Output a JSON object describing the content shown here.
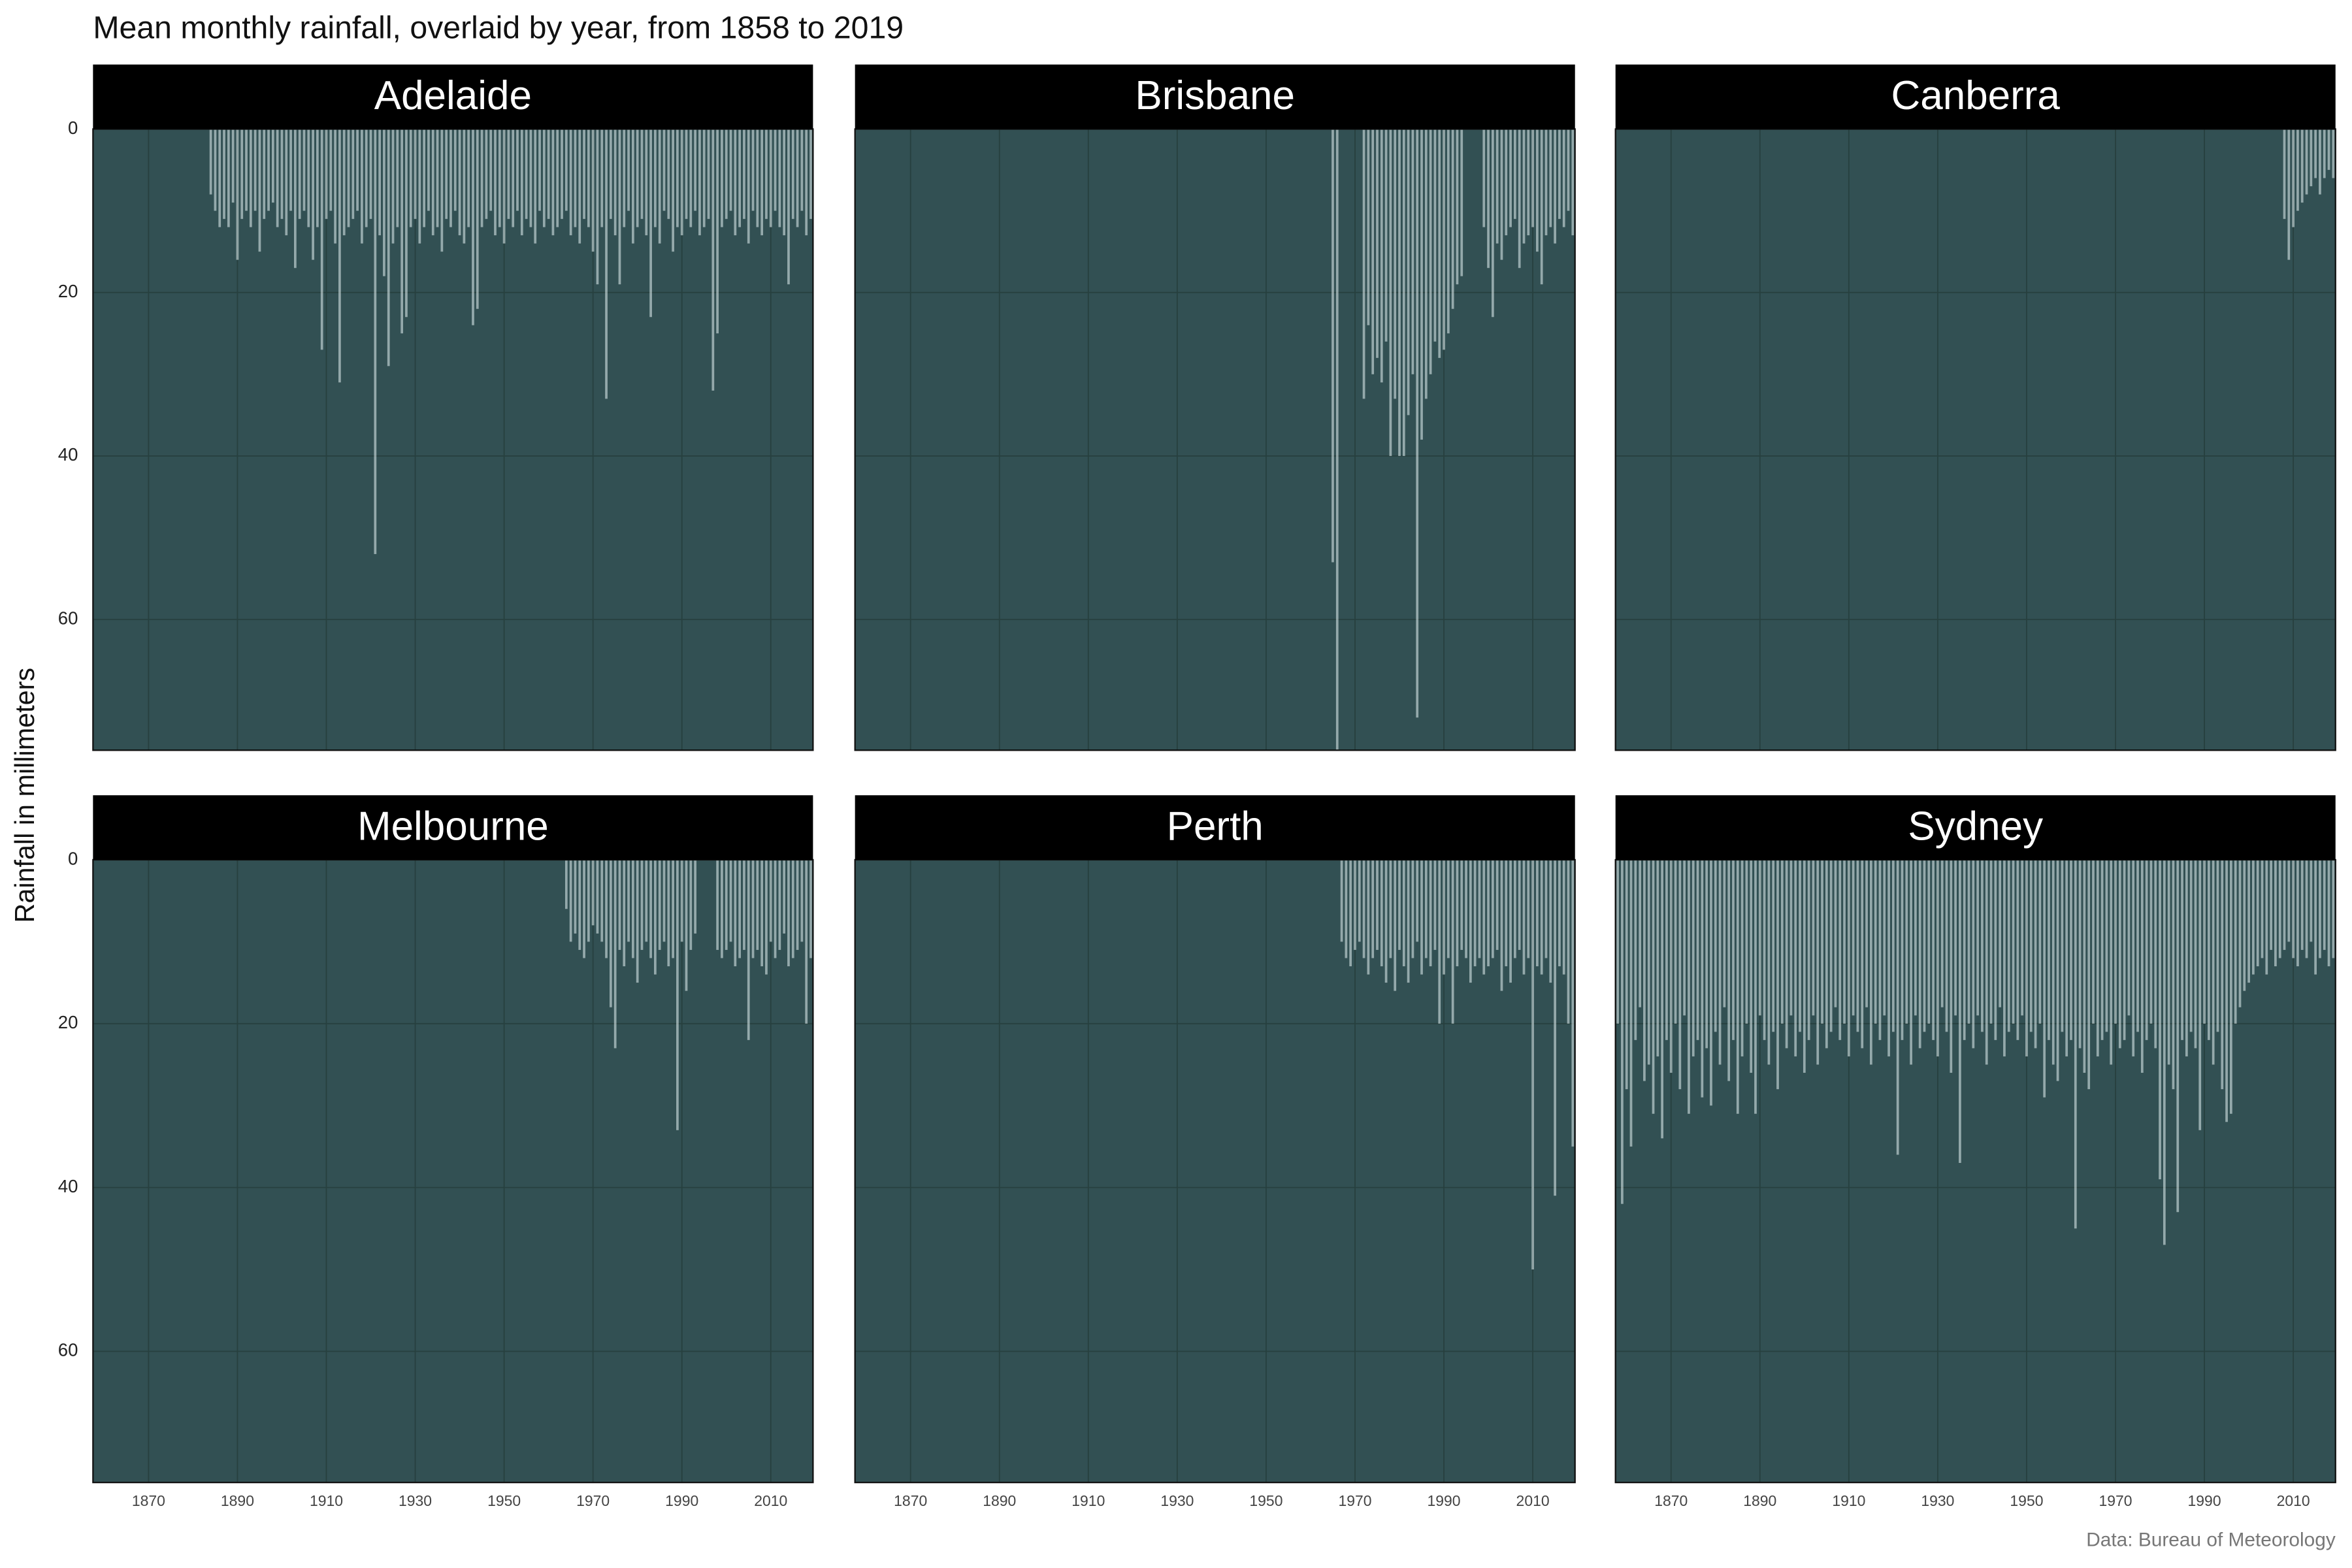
{
  "title": "Mean monthly rainfall, overlaid by year, from 1858 to 2019",
  "ylabel": "Rainfall in millimeters",
  "caption": "Data: Bureau of Meteorology",
  "chart_data": [
    {
      "type": "bar",
      "title": "Adelaide",
      "color": "#e6f3f4",
      "background": "#325053",
      "grid": true,
      "xlim": [
        1857.5,
        2019.5
      ],
      "ylim": [
        0,
        76
      ],
      "xticks": [
        1870,
        1890,
        1910,
        1930,
        1950,
        1970,
        1990,
        2010
      ],
      "yticks": [
        0,
        20,
        40,
        60
      ],
      "x": [
        1884,
        1885,
        1886,
        1887,
        1888,
        1889,
        1890,
        1891,
        1892,
        1893,
        1894,
        1895,
        1896,
        1897,
        1898,
        1899,
        1900,
        1901,
        1902,
        1903,
        1904,
        1905,
        1906,
        1907,
        1908,
        1909,
        1910,
        1911,
        1912,
        1913,
        1914,
        1915,
        1916,
        1917,
        1918,
        1919,
        1920,
        1921,
        1922,
        1923,
        1924,
        1925,
        1926,
        1927,
        1928,
        1929,
        1930,
        1931,
        1932,
        1933,
        1934,
        1935,
        1936,
        1937,
        1938,
        1939,
        1940,
        1941,
        1942,
        1943,
        1944,
        1945,
        1946,
        1947,
        1948,
        1949,
        1950,
        1951,
        1952,
        1953,
        1954,
        1955,
        1956,
        1957,
        1958,
        1959,
        1960,
        1961,
        1962,
        1963,
        1964,
        1965,
        1966,
        1967,
        1968,
        1969,
        1970,
        1971,
        1972,
        1973,
        1974,
        1975,
        1976,
        1977,
        1978,
        1979,
        1980,
        1981,
        1982,
        1983,
        1984,
        1985,
        1986,
        1987,
        1988,
        1989,
        1990,
        1991,
        1992,
        1993,
        1994,
        1995,
        1996,
        1997,
        1998,
        1999,
        2000,
        2001,
        2002,
        2003,
        2004,
        2005,
        2006,
        2007,
        2008,
        2009,
        2010,
        2011,
        2012,
        2013,
        2014,
        2015,
        2016,
        2017,
        2018,
        2019
      ],
      "values": [
        8,
        10,
        12,
        11,
        12,
        9,
        16,
        11,
        10,
        12,
        10,
        15,
        11,
        10,
        9,
        12,
        11,
        13,
        10,
        17,
        11,
        10,
        12,
        16,
        12,
        27,
        11,
        10,
        14,
        31,
        13,
        12,
        11,
        10,
        14,
        12,
        11,
        52,
        13,
        18,
        29,
        14,
        12,
        25,
        23,
        12,
        11,
        14,
        12,
        10,
        13,
        12,
        15,
        11,
        12,
        10,
        13,
        14,
        12,
        24,
        22,
        12,
        11,
        10,
        13,
        12,
        14,
        11,
        12,
        10,
        13,
        11,
        12,
        14,
        10,
        12,
        11,
        13,
        12,
        11,
        10,
        13,
        12,
        14,
        11,
        12,
        15,
        19,
        12,
        33,
        11,
        13,
        19,
        12,
        10,
        14,
        12,
        11,
        13,
        23,
        12,
        14,
        10,
        11,
        15,
        12,
        13,
        11,
        12,
        10,
        13,
        12,
        11,
        32,
        25,
        12,
        11,
        10,
        13,
        12,
        11,
        14,
        10,
        12,
        13,
        11,
        12,
        10,
        12,
        13,
        19,
        11,
        12,
        10,
        13,
        11
      ]
    },
    {
      "type": "bar",
      "title": "Brisbane",
      "color": "#e6f3f4",
      "background": "#325053",
      "grid": true,
      "xlim": [
        1857.5,
        2019.5
      ],
      "ylim": [
        0,
        76
      ],
      "xticks": [
        1870,
        1890,
        1910,
        1930,
        1950,
        1970,
        1990,
        2010
      ],
      "yticks": [
        0,
        20,
        40,
        60
      ],
      "x": [
        1965,
        1966,
        1972,
        1973,
        1974,
        1975,
        1976,
        1977,
        1978,
        1979,
        1980,
        1981,
        1982,
        1983,
        1984,
        1985,
        1986,
        1987,
        1988,
        1989,
        1990,
        1991,
        1992,
        1993,
        1994,
        1999,
        2000,
        2001,
        2002,
        2003,
        2004,
        2005,
        2006,
        2007,
        2008,
        2009,
        2010,
        2011,
        2012,
        2013,
        2014,
        2015,
        2016,
        2017,
        2018,
        2019
      ],
      "values": [
        53,
        76,
        33,
        24,
        30,
        28,
        31,
        26,
        40,
        33,
        40,
        40,
        35,
        30,
        72,
        38,
        33,
        30,
        26,
        28,
        27,
        25,
        22,
        19,
        18,
        12,
        17,
        23,
        14,
        16,
        13,
        12,
        11,
        17,
        14,
        13,
        12,
        15,
        19,
        13,
        12,
        14,
        11,
        12,
        10,
        13
      ]
    },
    {
      "type": "bar",
      "title": "Canberra",
      "color": "#e6f3f4",
      "background": "#325053",
      "grid": true,
      "xlim": [
        1857.5,
        2019.5
      ],
      "ylim": [
        0,
        76
      ],
      "xticks": [
        1870,
        1890,
        1910,
        1930,
        1950,
        1970,
        1990,
        2010
      ],
      "yticks": [
        0,
        20,
        40,
        60
      ],
      "x": [
        2008,
        2009,
        2010,
        2011,
        2012,
        2013,
        2014,
        2015,
        2016,
        2017,
        2018,
        2019
      ],
      "values": [
        11,
        16,
        12,
        10,
        9,
        8,
        7,
        6,
        8,
        6,
        5,
        6
      ]
    },
    {
      "type": "bar",
      "title": "Melbourne",
      "color": "#e6f3f4",
      "background": "#325053",
      "grid": true,
      "xlim": [
        1857.5,
        2019.5
      ],
      "ylim": [
        0,
        76
      ],
      "xticks": [
        1870,
        1890,
        1910,
        1930,
        1950,
        1970,
        1990,
        2010
      ],
      "yticks": [
        0,
        20,
        40,
        60
      ],
      "x": [
        1964,
        1965,
        1966,
        1967,
        1968,
        1969,
        1970,
        1971,
        1972,
        1973,
        1974,
        1975,
        1976,
        1977,
        1978,
        1979,
        1980,
        1981,
        1982,
        1983,
        1984,
        1985,
        1986,
        1987,
        1988,
        1989,
        1990,
        1991,
        1992,
        1993,
        1998,
        1999,
        2000,
        2001,
        2002,
        2003,
        2004,
        2005,
        2006,
        2007,
        2008,
        2009,
        2010,
        2011,
        2012,
        2013,
        2014,
        2015,
        2016,
        2017,
        2018,
        2019
      ],
      "values": [
        6,
        10,
        9,
        11,
        12,
        10,
        8,
        9,
        10,
        12,
        18,
        23,
        11,
        13,
        10,
        12,
        15,
        11,
        10,
        12,
        14,
        11,
        10,
        13,
        12,
        33,
        10,
        16,
        11,
        9,
        11,
        12,
        11,
        10,
        13,
        12,
        11,
        22,
        12,
        11,
        13,
        14,
        10,
        12,
        11,
        9,
        13,
        12,
        11,
        10,
        20,
        12
      ]
    },
    {
      "type": "bar",
      "title": "Perth",
      "color": "#e6f3f4",
      "background": "#325053",
      "grid": true,
      "xlim": [
        1857.5,
        2019.5
      ],
      "ylim": [
        0,
        76
      ],
      "xticks": [
        1870,
        1890,
        1910,
        1930,
        1950,
        1970,
        1990,
        2010
      ],
      "yticks": [
        0,
        20,
        40,
        60
      ],
      "x": [
        1967,
        1968,
        1969,
        1970,
        1971,
        1972,
        1973,
        1974,
        1975,
        1976,
        1977,
        1978,
        1979,
        1980,
        1981,
        1982,
        1983,
        1984,
        1985,
        1986,
        1987,
        1988,
        1989,
        1990,
        1991,
        1992,
        1993,
        1994,
        1995,
        1996,
        1997,
        1998,
        1999,
        2000,
        2001,
        2002,
        2003,
        2004,
        2005,
        2006,
        2007,
        2008,
        2009,
        2010,
        2011,
        2012,
        2013,
        2014,
        2015,
        2016,
        2017,
        2018,
        2019
      ],
      "values": [
        10,
        12,
        13,
        11,
        10,
        12,
        14,
        12,
        11,
        13,
        15,
        12,
        16,
        11,
        13,
        15,
        12,
        10,
        14,
        12,
        13,
        11,
        20,
        14,
        12,
        20,
        13,
        11,
        12,
        15,
        13,
        12,
        14,
        13,
        12,
        11,
        16,
        13,
        15,
        12,
        11,
        14,
        12,
        50,
        13,
        14,
        12,
        15,
        41,
        13,
        14,
        20,
        35
      ]
    },
    {
      "type": "bar",
      "title": "Sydney",
      "color": "#e6f3f4",
      "background": "#325053",
      "grid": true,
      "xlim": [
        1857.5,
        2019.5
      ],
      "ylim": [
        0,
        76
      ],
      "xticks": [
        1870,
        1890,
        1910,
        1930,
        1950,
        1970,
        1990,
        2010
      ],
      "yticks": [
        0,
        20,
        40,
        60
      ],
      "x": [
        1858,
        1859,
        1860,
        1861,
        1862,
        1863,
        1864,
        1865,
        1866,
        1867,
        1868,
        1869,
        1870,
        1871,
        1872,
        1873,
        1874,
        1875,
        1876,
        1877,
        1878,
        1879,
        1880,
        1881,
        1882,
        1883,
        1884,
        1885,
        1886,
        1887,
        1888,
        1889,
        1890,
        1891,
        1892,
        1893,
        1894,
        1895,
        1896,
        1897,
        1898,
        1899,
        1900,
        1901,
        1902,
        1903,
        1904,
        1905,
        1906,
        1907,
        1908,
        1909,
        1910,
        1911,
        1912,
        1913,
        1914,
        1915,
        1916,
        1917,
        1918,
        1919,
        1920,
        1921,
        1922,
        1923,
        1924,
        1925,
        1926,
        1927,
        1928,
        1929,
        1930,
        1931,
        1932,
        1933,
        1934,
        1935,
        1936,
        1937,
        1938,
        1939,
        1940,
        1941,
        1942,
        1943,
        1944,
        1945,
        1946,
        1947,
        1948,
        1949,
        1950,
        1951,
        1952,
        1953,
        1954,
        1955,
        1956,
        1957,
        1958,
        1959,
        1960,
        1961,
        1962,
        1963,
        1964,
        1965,
        1966,
        1967,
        1968,
        1969,
        1970,
        1971,
        1972,
        1973,
        1974,
        1975,
        1976,
        1977,
        1978,
        1979,
        1980,
        1981,
        1982,
        1983,
        1984,
        1985,
        1986,
        1987,
        1988,
        1989,
        1990,
        1991,
        1992,
        1993,
        1994,
        1995,
        1996,
        1997,
        1998,
        1999,
        2000,
        2001,
        2002,
        2003,
        2004,
        2005,
        2006,
        2007,
        2008,
        2009,
        2010,
        2011,
        2012,
        2013,
        2014,
        2015,
        2016,
        2017,
        2018,
        2019
      ],
      "values": [
        20,
        42,
        28,
        35,
        22,
        18,
        27,
        25,
        31,
        24,
        34,
        22,
        26,
        20,
        28,
        19,
        31,
        24,
        22,
        29,
        23,
        30,
        21,
        25,
        18,
        27,
        22,
        31,
        24,
        20,
        26,
        31,
        19,
        22,
        25,
        21,
        28,
        20,
        23,
        19,
        24,
        21,
        26,
        22,
        19,
        25,
        20,
        23,
        21,
        18,
        22,
        20,
        24,
        19,
        21,
        23,
        18,
        25,
        20,
        22,
        19,
        24,
        21,
        36,
        22,
        20,
        25,
        19,
        23,
        21,
        20,
        22,
        24,
        18,
        21,
        26,
        19,
        37,
        22,
        20,
        23,
        19,
        21,
        25,
        20,
        22,
        18,
        24,
        21,
        20,
        22,
        19,
        24,
        21,
        23,
        20,
        29,
        22,
        25,
        27,
        21,
        24,
        22,
        45,
        23,
        26,
        28,
        20,
        24,
        22,
        21,
        25,
        20,
        23,
        22,
        19,
        24,
        21,
        26,
        22,
        20,
        23,
        39,
        47,
        25,
        28,
        43,
        22,
        24,
        21,
        23,
        33,
        20,
        22,
        25,
        21,
        28,
        32,
        31,
        20,
        18,
        16,
        15,
        14,
        13,
        12,
        14,
        11,
        13,
        12,
        11,
        10,
        12,
        13,
        11,
        12,
        10,
        14,
        12,
        11,
        13,
        12
      ]
    }
  ]
}
